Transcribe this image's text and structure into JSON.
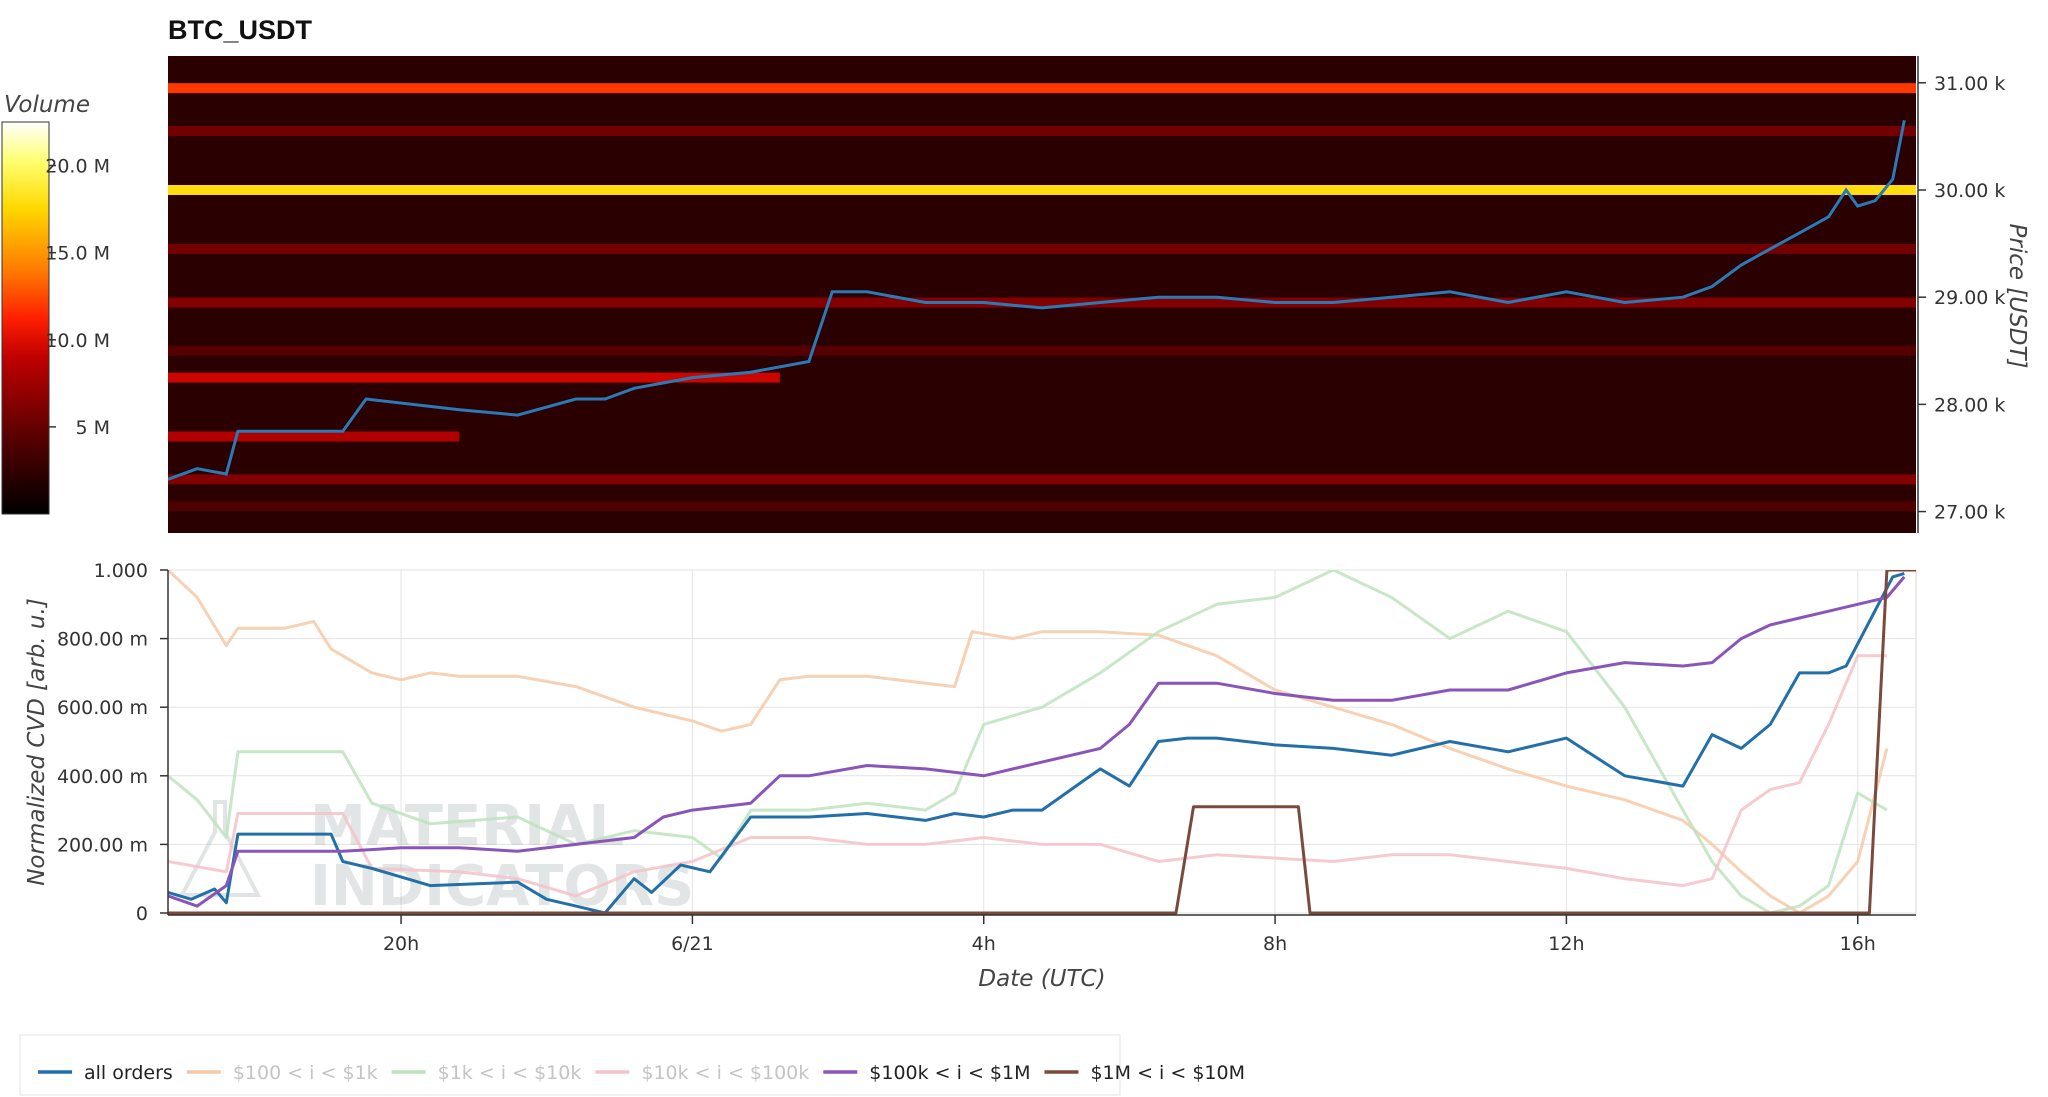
{
  "chart_data": [
    {
      "type": "heatmap",
      "title": "BTC_USDT",
      "ylabel": "Price [USDT]",
      "y_ticks": [
        {
          "value": 27000,
          "label": "27.00 k"
        },
        {
          "value": 28000,
          "label": "28.00 k"
        },
        {
          "value": 29000,
          "label": "29.00 k"
        },
        {
          "value": 30000,
          "label": "30.00 k"
        },
        {
          "value": 31000,
          "label": "31.00 k"
        }
      ],
      "ylim": [
        26800,
        31250
      ],
      "xlim": [
        0,
        30
      ],
      "colorbar": {
        "title": "Volume",
        "ticks": [
          {
            "value": 5,
            "label": "5 M"
          },
          {
            "value": 10,
            "label": "10.0 M"
          },
          {
            "value": 15,
            "label": "15.0 M"
          },
          {
            "value": 20,
            "label": "20.0 M"
          }
        ],
        "range": [
          0,
          22.5
        ],
        "colormap": [
          "#000000",
          "#5a0000",
          "#c00000",
          "#ff2000",
          "#ff7a00",
          "#ffd800",
          "#ffff70",
          "#ffffff"
        ]
      },
      "heat_bands": [
        {
          "price": 30950,
          "volume": 10.5,
          "t_end": 30
        },
        {
          "price": 30000,
          "volume": 16.5,
          "t_end": 30
        },
        {
          "price": 28250,
          "volume": 7.0,
          "t_end": 10.5
        },
        {
          "price": 27700,
          "volume": 6.0,
          "t_end": 5
        },
        {
          "price": 28950,
          "volume": 4.5,
          "t_end": 30
        },
        {
          "price": 29450,
          "volume": 4.0,
          "t_end": 30
        },
        {
          "price": 30550,
          "volume": 4.0,
          "t_end": 30
        },
        {
          "price": 27300,
          "volume": 4.5,
          "t_end": 30
        },
        {
          "price": 28500,
          "volume": 3.0,
          "t_end": 30
        },
        {
          "price": 27050,
          "volume": 2.8,
          "t_end": 30
        }
      ],
      "price_line": {
        "color": "#2a7ab8",
        "x": [
          0,
          0.5,
          1.0,
          1.2,
          3.0,
          3.4,
          5.0,
          6.0,
          7.0,
          7.5,
          8.0,
          9.0,
          10.0,
          10.5,
          11.0,
          11.4,
          12.0,
          13.0,
          14.0,
          15.0,
          16.0,
          17.0,
          18.0,
          19.0,
          20.0,
          21.0,
          22.0,
          23.0,
          24.0,
          25.0,
          26.0,
          26.5,
          27.0,
          27.5,
          28.0,
          28.5,
          28.8,
          29.0,
          29.3,
          29.6,
          29.8
        ],
        "y": [
          27300,
          27400,
          27350,
          27750,
          27750,
          28050,
          27950,
          27900,
          28050,
          28050,
          28150,
          28250,
          28300,
          28350,
          28400,
          29050,
          29050,
          28950,
          28950,
          28900,
          28950,
          29000,
          29000,
          28950,
          28950,
          29000,
          29050,
          28950,
          29050,
          28950,
          29000,
          29100,
          29300,
          29450,
          29600,
          29750,
          30000,
          29850,
          29900,
          30100,
          30650
        ]
      }
    },
    {
      "type": "line",
      "xlabel": "Date (UTC)",
      "ylabel": "Normalized CVD [arb. u.]",
      "xlim": [
        0,
        30
      ],
      "ylim": [
        0,
        1
      ],
      "grid": true,
      "x_ticks": [
        {
          "value": 4,
          "label": "20h"
        },
        {
          "value": 9,
          "label": "6/21"
        },
        {
          "value": 14,
          "label": "4h"
        },
        {
          "value": 19,
          "label": "8h"
        },
        {
          "value": 24,
          "label": "12h"
        },
        {
          "value": 29,
          "label": "16h"
        }
      ],
      "y_ticks": [
        {
          "value": 0,
          "label": "0"
        },
        {
          "value": 0.2,
          "label": "200.00 m"
        },
        {
          "value": 0.4,
          "label": "400.00 m"
        },
        {
          "value": 0.6,
          "label": "600.00 m"
        },
        {
          "value": 0.8,
          "label": "800.00 m"
        },
        {
          "value": 1.0,
          "label": "1.000"
        }
      ],
      "legend_position": "bottom-left",
      "series": [
        {
          "name": "$100 < i < $1k",
          "color": "#f6c9a6",
          "muted": true,
          "x": [
            0,
            0.5,
            1,
            1.2,
            2.0,
            2.5,
            2.8,
            3.5,
            4,
            4.5,
            5,
            6,
            7,
            8,
            9,
            9.5,
            10,
            10.5,
            11,
            12,
            13,
            13.5,
            13.8,
            14.5,
            15,
            16,
            17,
            18,
            19,
            20,
            21,
            22,
            23,
            24,
            25,
            26,
            26.5,
            27,
            27.5,
            28,
            28.5,
            29,
            29.5
          ],
          "y": [
            1.0,
            0.92,
            0.78,
            0.83,
            0.83,
            0.85,
            0.77,
            0.7,
            0.68,
            0.7,
            0.69,
            0.69,
            0.66,
            0.6,
            0.56,
            0.53,
            0.55,
            0.68,
            0.69,
            0.69,
            0.67,
            0.66,
            0.82,
            0.8,
            0.82,
            0.82,
            0.81,
            0.75,
            0.65,
            0.6,
            0.55,
            0.48,
            0.42,
            0.37,
            0.33,
            0.27,
            0.2,
            0.12,
            0.05,
            0.0,
            0.05,
            0.15,
            0.48
          ]
        },
        {
          "name": "$1k < i < $10k",
          "color": "#bde3bd",
          "muted": true,
          "x": [
            0,
            0.5,
            1,
            1.2,
            3,
            3.5,
            4.5,
            6,
            7,
            8,
            9,
            9.5,
            10,
            11,
            12,
            13,
            13.5,
            14,
            15,
            16,
            17,
            18,
            19,
            20,
            21,
            22,
            23,
            24,
            25,
            26,
            26.5,
            27,
            27.5,
            28,
            28.5,
            29,
            29.5
          ],
          "y": [
            0.4,
            0.33,
            0.22,
            0.47,
            0.47,
            0.32,
            0.26,
            0.28,
            0.2,
            0.24,
            0.22,
            0.16,
            0.3,
            0.3,
            0.32,
            0.3,
            0.35,
            0.55,
            0.6,
            0.7,
            0.82,
            0.9,
            0.92,
            1.0,
            0.92,
            0.8,
            0.88,
            0.82,
            0.6,
            0.3,
            0.15,
            0.05,
            0.0,
            0.02,
            0.08,
            0.35,
            0.3
          ]
        },
        {
          "name": "$10k < i < $100k",
          "color": "#f5c2c8",
          "muted": true,
          "x": [
            0,
            1,
            1.2,
            3,
            3.5,
            5,
            6,
            7,
            8,
            9,
            10,
            11,
            12,
            13,
            14,
            15,
            16,
            17,
            18,
            19,
            20,
            21,
            22,
            23,
            24,
            25,
            26,
            26.5,
            27,
            27.5,
            28,
            28.5,
            29,
            29.5
          ],
          "y": [
            0.15,
            0.12,
            0.29,
            0.29,
            0.13,
            0.12,
            0.1,
            0.05,
            0.12,
            0.15,
            0.22,
            0.22,
            0.2,
            0.2,
            0.22,
            0.2,
            0.2,
            0.15,
            0.17,
            0.16,
            0.15,
            0.17,
            0.17,
            0.15,
            0.13,
            0.1,
            0.08,
            0.1,
            0.3,
            0.36,
            0.38,
            0.55,
            0.75,
            0.75
          ]
        },
        {
          "name": "all orders",
          "color": "#2370a8",
          "muted": false,
          "x": [
            0,
            0.4,
            0.8,
            1.0,
            1.2,
            2.8,
            3.0,
            3.5,
            4.5,
            6,
            6.5,
            7,
            7.5,
            8.0,
            8.3,
            8.8,
            9.3,
            10,
            10.5,
            11,
            12,
            13,
            13.5,
            14,
            14.5,
            15,
            16,
            16.5,
            17,
            17.5,
            18,
            19,
            20,
            21,
            22,
            23,
            24,
            25,
            26,
            26.5,
            27,
            27.5,
            28,
            28.5,
            28.8,
            29.2,
            29.6,
            29.8
          ],
          "y": [
            0.06,
            0.04,
            0.07,
            0.03,
            0.23,
            0.23,
            0.15,
            0.13,
            0.08,
            0.09,
            0.04,
            0.02,
            0.0,
            0.1,
            0.06,
            0.14,
            0.12,
            0.28,
            0.28,
            0.28,
            0.29,
            0.27,
            0.29,
            0.28,
            0.3,
            0.3,
            0.42,
            0.37,
            0.5,
            0.51,
            0.51,
            0.49,
            0.48,
            0.46,
            0.5,
            0.47,
            0.51,
            0.4,
            0.37,
            0.52,
            0.48,
            0.55,
            0.7,
            0.7,
            0.72,
            0.85,
            0.98,
            0.99
          ]
        },
        {
          "name": "$100k < i < $1M",
          "color": "#8a55b8",
          "muted": false,
          "x": [
            0,
            0.5,
            1,
            1.2,
            3,
            4,
            5,
            6,
            7,
            8,
            8.5,
            9,
            10,
            10.5,
            11,
            12,
            13,
            14,
            15,
            16,
            16.5,
            17,
            18,
            19,
            20,
            21,
            22,
            23,
            24,
            25,
            26,
            26.5,
            27,
            27.5,
            28,
            28.5,
            29,
            29.5,
            29.8
          ],
          "y": [
            0.05,
            0.02,
            0.08,
            0.18,
            0.18,
            0.19,
            0.19,
            0.18,
            0.2,
            0.22,
            0.28,
            0.3,
            0.32,
            0.4,
            0.4,
            0.43,
            0.42,
            0.4,
            0.44,
            0.48,
            0.55,
            0.67,
            0.67,
            0.64,
            0.62,
            0.62,
            0.65,
            0.65,
            0.7,
            0.73,
            0.72,
            0.73,
            0.8,
            0.84,
            0.86,
            0.88,
            0.9,
            0.92,
            0.98
          ]
        },
        {
          "name": "$1M < i < $10M",
          "color": "#7a4a3c",
          "muted": false,
          "x": [
            0,
            17.3,
            17.6,
            19.4,
            19.6,
            29.2,
            29.5,
            30
          ],
          "y": [
            0,
            0,
            0.31,
            0.31,
            0,
            0,
            1.0,
            1.0
          ]
        }
      ]
    }
  ],
  "watermark": {
    "line1": "MATERIAL",
    "line2": "INDICATORS"
  }
}
